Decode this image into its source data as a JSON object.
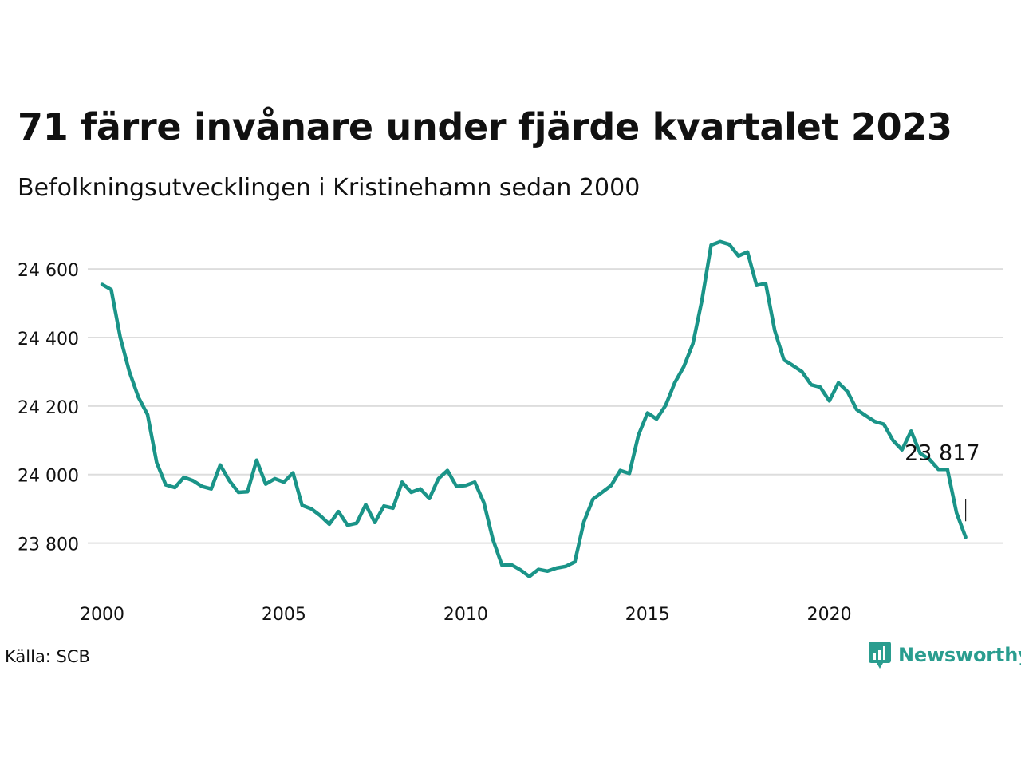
{
  "title": "71 färre invånare under fjärde kvartalet 2023",
  "subtitle": "Befolkningsutvecklingen i Kristinehamn sedan 2000",
  "source": "Källa: SCB",
  "brand": "Newsworthy",
  "colors": {
    "line": "#1a9488",
    "grid": "#dddddd",
    "brand": "#2a9d8f"
  },
  "chart_data": {
    "type": "line",
    "x_axis": {
      "ticks": [
        2000,
        2005,
        2010,
        2015,
        2020
      ],
      "tick_labels": [
        "2000",
        "2005",
        "2010",
        "2015",
        "2020"
      ],
      "range": [
        2000,
        2024
      ]
    },
    "y_axis": {
      "ticks": [
        23800,
        24000,
        24200,
        24400,
        24600
      ],
      "tick_labels": [
        "23 800",
        "24 000",
        "24 200",
        "24 400",
        "24 600"
      ],
      "range": [
        23700,
        24690
      ]
    },
    "grid": true,
    "annotation": {
      "label": "23 817",
      "x": 2023.75,
      "y": 23817
    },
    "series": [
      {
        "values": [
          [
            2000.0,
            24555
          ],
          [
            2000.25,
            24540
          ],
          [
            2000.5,
            24400
          ],
          [
            2000.75,
            24300
          ],
          [
            2001.0,
            24225
          ],
          [
            2001.25,
            24175
          ],
          [
            2001.5,
            24035
          ],
          [
            2001.75,
            23970
          ],
          [
            2002.0,
            23962
          ],
          [
            2002.25,
            23992
          ],
          [
            2002.5,
            23982
          ],
          [
            2002.75,
            23965
          ],
          [
            2003.0,
            23958
          ],
          [
            2003.25,
            24028
          ],
          [
            2003.5,
            23982
          ],
          [
            2003.75,
            23948
          ],
          [
            2004.0,
            23950
          ],
          [
            2004.25,
            24042
          ],
          [
            2004.5,
            23972
          ],
          [
            2004.75,
            23988
          ],
          [
            2005.0,
            23978
          ],
          [
            2005.25,
            24005
          ],
          [
            2005.5,
            23910
          ],
          [
            2005.75,
            23900
          ],
          [
            2006.0,
            23880
          ],
          [
            2006.25,
            23855
          ],
          [
            2006.5,
            23892
          ],
          [
            2006.75,
            23852
          ],
          [
            2007.0,
            23858
          ],
          [
            2007.25,
            23912
          ],
          [
            2007.5,
            23860
          ],
          [
            2007.75,
            23908
          ],
          [
            2008.0,
            23902
          ],
          [
            2008.25,
            23978
          ],
          [
            2008.5,
            23948
          ],
          [
            2008.75,
            23958
          ],
          [
            2009.0,
            23930
          ],
          [
            2009.25,
            23988
          ],
          [
            2009.5,
            24012
          ],
          [
            2009.75,
            23965
          ],
          [
            2010.0,
            23968
          ],
          [
            2010.25,
            23978
          ],
          [
            2010.5,
            23918
          ],
          [
            2010.75,
            23810
          ],
          [
            2011.0,
            23735
          ],
          [
            2011.25,
            23737
          ],
          [
            2011.5,
            23722
          ],
          [
            2011.75,
            23702
          ],
          [
            2012.0,
            23723
          ],
          [
            2012.25,
            23718
          ],
          [
            2012.5,
            23727
          ],
          [
            2012.75,
            23732
          ],
          [
            2013.0,
            23745
          ],
          [
            2013.25,
            23862
          ],
          [
            2013.5,
            23928
          ],
          [
            2013.75,
            23948
          ],
          [
            2014.0,
            23968
          ],
          [
            2014.25,
            24012
          ],
          [
            2014.5,
            24003
          ],
          [
            2014.75,
            24115
          ],
          [
            2015.0,
            24180
          ],
          [
            2015.25,
            24162
          ],
          [
            2015.5,
            24202
          ],
          [
            2015.75,
            24268
          ],
          [
            2016.0,
            24315
          ],
          [
            2016.25,
            24382
          ],
          [
            2016.5,
            24510
          ],
          [
            2016.75,
            24670
          ],
          [
            2017.0,
            24680
          ],
          [
            2017.25,
            24672
          ],
          [
            2017.5,
            24638
          ],
          [
            2017.75,
            24650
          ],
          [
            2018.0,
            24552
          ],
          [
            2018.25,
            24558
          ],
          [
            2018.5,
            24420
          ],
          [
            2018.75,
            24335
          ],
          [
            2019.0,
            24318
          ],
          [
            2019.25,
            24300
          ],
          [
            2019.5,
            24262
          ],
          [
            2019.75,
            24255
          ],
          [
            2020.0,
            24215
          ],
          [
            2020.25,
            24268
          ],
          [
            2020.5,
            24242
          ],
          [
            2020.75,
            24190
          ],
          [
            2021.0,
            24172
          ],
          [
            2021.25,
            24155
          ],
          [
            2021.5,
            24147
          ],
          [
            2021.75,
            24100
          ],
          [
            2022.0,
            24072
          ],
          [
            2022.25,
            24127
          ],
          [
            2022.5,
            24062
          ],
          [
            2022.75,
            24045
          ],
          [
            2023.0,
            24015
          ],
          [
            2023.25,
            24015
          ],
          [
            2023.5,
            23888
          ],
          [
            2023.75,
            23817
          ]
        ]
      }
    ]
  }
}
